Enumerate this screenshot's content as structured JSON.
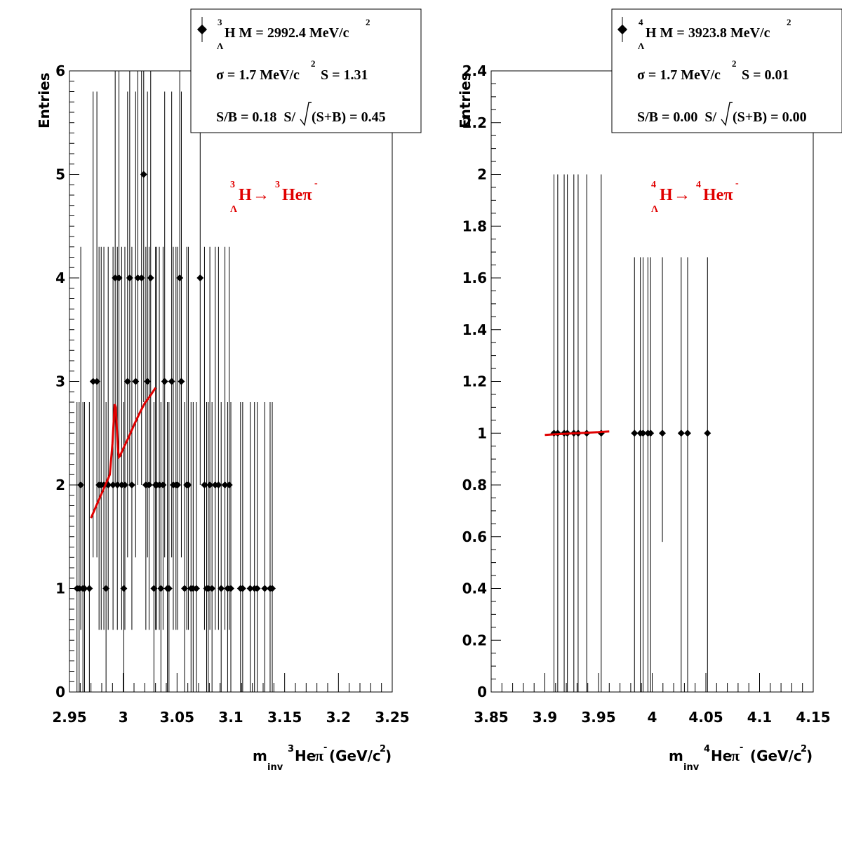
{
  "colors": {
    "fit": "#e00000",
    "marker": "#000000",
    "frame": "#000000",
    "decay_label": "#e00000"
  },
  "chart_data": [
    {
      "type": "scatter",
      "ylabel": "Entries",
      "xlabel_parts": {
        "m": "m",
        "sub": "inv",
        "sup_a": "3",
        "he": "He",
        "pi": "π",
        "sup_b": "-",
        "unit": " (GeV/c",
        "unit_sup": "2",
        "close": ")"
      },
      "xlim": [
        2.95,
        3.25
      ],
      "ylim": [
        0,
        6
      ],
      "x_ticks": [
        "2.95",
        "3",
        "3.05",
        "3.1",
        "3.15",
        "3.2",
        "3.25"
      ],
      "y_ticks": [
        "0",
        "1",
        "2",
        "3",
        "4",
        "5",
        "6"
      ],
      "x_tick_values": [
        2.95,
        3.0,
        3.05,
        3.1,
        3.15,
        3.2,
        3.25
      ],
      "y_tick_values": [
        0,
        1,
        2,
        3,
        4,
        5,
        6
      ],
      "decay_label": {
        "sup1": "3",
        "H": "H",
        "lam": "Λ",
        "arrow": "→",
        "sup2": "3",
        "he": "Heπ",
        "minus": "-"
      },
      "stats": {
        "sup_a": "3",
        "sub_lam": "Λ",
        "line1": "H M = 2992.4 MeV/c",
        "line1_sup": "2",
        "line2a": "σ = 1.7 MeV/c",
        "line2_sup": "2",
        "line2b": "S = 1.31",
        "line3a": "S/B = 0.18  S/",
        "line3b": "(S+B) = 0.45"
      },
      "points": {
        "x": [
          2.957,
          2.959,
          2.9605,
          2.9625,
          2.964,
          2.9685,
          2.972,
          2.9755,
          2.9775,
          2.9795,
          2.982,
          2.984,
          2.986,
          2.9905,
          2.9925,
          2.9945,
          2.996,
          2.9985,
          3.0005,
          3.0015,
          3.004,
          3.006,
          3.008,
          3.0115,
          3.0135,
          3.017,
          3.019,
          3.021,
          3.0225,
          3.024,
          3.0255,
          3.0285,
          3.03,
          3.031,
          3.0335,
          3.035,
          3.037,
          3.0385,
          3.041,
          3.0425,
          3.045,
          3.0465,
          3.049,
          3.0505,
          3.0525,
          3.054,
          3.057,
          3.059,
          3.0605,
          3.063,
          3.065,
          3.068,
          3.0715,
          3.0755,
          3.0775,
          3.079,
          3.0805,
          3.0825,
          3.0855,
          3.0885,
          3.091,
          3.0945,
          3.097,
          3.0985,
          3.1,
          3.109,
          3.111,
          3.118,
          3.122,
          3.1245,
          3.1315,
          3.1365,
          3.1385
        ],
        "y": [
          1,
          1,
          2,
          1,
          1,
          1,
          3,
          3,
          2,
          2,
          2,
          1,
          2,
          2,
          4,
          2,
          4,
          2,
          1,
          2,
          3,
          4,
          2,
          3,
          4,
          4,
          5,
          2,
          3,
          2,
          4,
          1,
          2,
          2,
          2,
          1,
          2,
          3,
          1,
          1,
          3,
          2,
          2,
          2,
          4,
          3,
          1,
          2,
          2,
          1,
          1,
          1,
          4,
          2,
          1,
          1,
          2,
          1,
          2,
          2,
          1,
          2,
          1,
          2,
          1,
          1,
          1,
          1,
          1,
          1,
          1,
          1,
          1
        ],
        "err_hi": [
          1.8,
          1.8,
          2.3,
          1.8,
          1.8,
          1.8,
          2.8,
          2.8,
          2.3,
          2.3,
          2.3,
          1.8,
          2.3,
          2.3,
          3.2,
          2.3,
          3.2,
          2.3,
          1.8,
          2.3,
          2.8,
          3.2,
          2.3,
          2.8,
          3.2,
          3.2,
          3.6,
          2.3,
          2.8,
          2.3,
          3.2,
          1.8,
          2.3,
          2.3,
          2.3,
          1.8,
          2.3,
          2.8,
          1.8,
          1.8,
          2.8,
          2.3,
          2.3,
          2.3,
          3.2,
          2.8,
          1.8,
          2.3,
          2.3,
          1.8,
          1.8,
          1.8,
          3.2,
          2.3,
          1.8,
          1.8,
          2.3,
          1.8,
          2.3,
          2.3,
          1.8,
          2.3,
          1.8,
          2.3,
          1.8,
          1.8,
          1.8,
          1.8,
          1.8,
          1.8,
          1.8,
          1.8,
          1.8
        ],
        "err_lo": [
          1,
          1,
          1.4,
          1,
          1,
          1,
          1.7,
          1.7,
          1.4,
          1.4,
          1.4,
          1,
          1.4,
          1.4,
          2,
          1.4,
          2,
          1.4,
          1,
          1.4,
          1.7,
          2,
          1.4,
          1.7,
          2,
          2,
          2.2,
          1.4,
          1.7,
          1.4,
          2,
          1,
          1.4,
          1.4,
          1.4,
          1,
          1.4,
          1.7,
          1,
          1,
          1.7,
          1.4,
          1.4,
          1.4,
          2,
          1.7,
          1,
          1.4,
          1.4,
          1,
          1,
          1,
          2,
          1.4,
          1,
          1,
          1.4,
          1,
          1.4,
          1.4,
          1,
          1.4,
          1,
          1.4,
          1,
          1,
          1,
          1,
          1,
          1,
          1,
          1,
          1
        ]
      },
      "fit": {
        "x": [
          2.97,
          2.975,
          2.98,
          2.985,
          2.9875,
          2.99,
          2.991,
          2.992,
          2.993,
          2.994,
          2.995,
          2.996,
          2.997,
          2.999,
          3.005,
          3.01,
          3.015,
          3.02,
          3.025,
          3.03
        ],
        "y": [
          1.68,
          1.8,
          1.92,
          2.04,
          2.1,
          2.4,
          2.6,
          2.78,
          2.75,
          2.55,
          2.35,
          2.27,
          2.28,
          2.33,
          2.46,
          2.58,
          2.69,
          2.79,
          2.86,
          2.94
        ]
      }
    },
    {
      "type": "scatter",
      "ylabel": "Entries",
      "xlabel_parts": {
        "m": "m",
        "sub": "inv",
        "sup_a": "4",
        "he": "He",
        "pi": "π",
        "sup_b": "-",
        "unit": "  (GeV/c",
        "unit_sup": "2",
        "close": ")"
      },
      "xlim": [
        3.85,
        4.15
      ],
      "ylim": [
        0,
        2.4
      ],
      "x_ticks": [
        "3.85",
        "3.9",
        "3.95",
        "4",
        "4.05",
        "4.1",
        "4.15"
      ],
      "y_ticks": [
        "0",
        "0.2",
        "0.4",
        "0.6",
        "0.8",
        "1",
        "1.2",
        "1.4",
        "1.6",
        "1.8",
        "2",
        "2.2",
        "2.4"
      ],
      "x_tick_values": [
        3.85,
        3.9,
        3.95,
        4.0,
        4.05,
        4.1,
        4.15
      ],
      "y_tick_values": [
        0,
        0.2,
        0.4,
        0.6,
        0.8,
        1.0,
        1.2,
        1.4,
        1.6,
        1.8,
        2.0,
        2.2,
        2.4
      ],
      "decay_label": {
        "sup1": "4",
        "H": "H",
        "lam": "Λ",
        "arrow": "→",
        "sup2": "4",
        "he": "Heπ",
        "minus": "-"
      },
      "stats": {
        "sup_a": "4",
        "sub_lam": "Λ",
        "line1": "H M = 3923.8 MeV/c",
        "line1_sup": "2",
        "line2a": "σ = 1.7 MeV/c",
        "line2_sup": "2",
        "line2b": "S = 0.01",
        "line3a": "S/B = 0.00  S/",
        "line3b": "(S+B) = 0.00"
      },
      "points": {
        "x": [
          3.9085,
          3.912,
          3.918,
          3.921,
          3.927,
          3.931,
          3.939,
          3.9525,
          3.9835,
          3.989,
          3.9915,
          3.996,
          3.9985,
          4.0095,
          4.027,
          4.033,
          4.0515
        ],
        "y": [
          1,
          1,
          1,
          1,
          1,
          1,
          1,
          1,
          1,
          1,
          1,
          1,
          1,
          1,
          1,
          1,
          1
        ],
        "err_hi": [
          1.0,
          1.0,
          1.0,
          1.0,
          1.0,
          1.0,
          1.0,
          1.0,
          0.68,
          0.68,
          0.68,
          0.68,
          0.68,
          0.68,
          0.68,
          0.68,
          0.68
        ],
        "err_lo": [
          1.0,
          1.0,
          1.0,
          1.0,
          1.0,
          1.0,
          1.0,
          1.0,
          1.0,
          1.0,
          1.0,
          1.0,
          1.0,
          0.42,
          1.0,
          1.0,
          1.0
        ]
      },
      "fit": {
        "x": [
          3.9,
          3.91,
          3.92,
          3.93,
          3.94,
          3.95,
          3.96
        ],
        "y": [
          0.993,
          0.996,
          0.998,
          1.0,
          1.002,
          1.004,
          1.007
        ]
      }
    }
  ]
}
